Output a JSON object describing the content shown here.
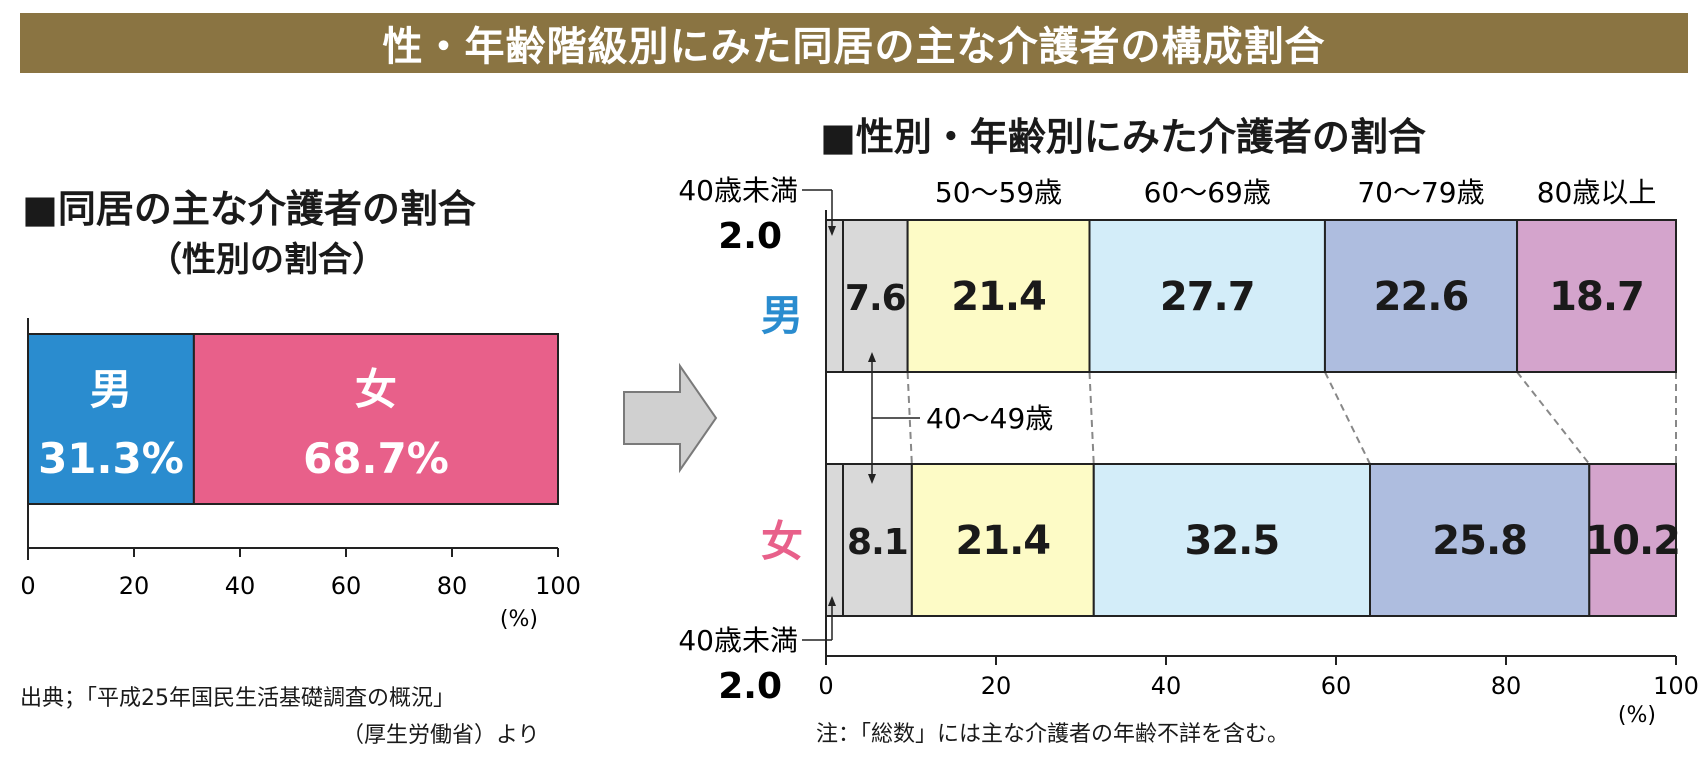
{
  "title": "性・年齢階級別にみた同居の主な介護者の構成割合",
  "left_heading": "■同居の主な介護者の割合",
  "left_subheading": "（性別の割合）",
  "right_heading": "■性別・年齢別にみた介護者の割合",
  "source_line1": "出典；「平成25年国民生活基礎調査の概況」",
  "source_line2": "（厚生労働省）より",
  "note": "注：「総数」には主な介護者の年齢不詳を含む。",
  "colors": {
    "title_bg": "#8a7442",
    "male": "#2a8ccf",
    "female": "#e8608a",
    "arrow": "#d0d0d0",
    "age_colors": [
      "#d9d9d9",
      "#d9d9d9",
      "#fdfbc6",
      "#d3edf9",
      "#aebddf",
      "#d4a4cc"
    ]
  },
  "chart_data": [
    {
      "type": "bar",
      "orientation": "horizontal",
      "stacked": true,
      "categories": [
        "男",
        "女"
      ],
      "values": [
        31.3,
        68.7
      ],
      "value_labels": [
        "31.3%",
        "68.7%"
      ],
      "xlim": [
        0,
        100
      ],
      "xticks": [
        "0",
        "20",
        "40",
        "60",
        "80",
        "100"
      ],
      "unit": "(%)"
    },
    {
      "type": "bar",
      "orientation": "horizontal",
      "stacked": true,
      "age_groups": [
        "40歳未満",
        "40～49歳",
        "50～59歳",
        "60～69歳",
        "70～79歳",
        "80歳以上"
      ],
      "series": [
        {
          "name": "男",
          "values": [
            2.0,
            7.6,
            21.4,
            27.7,
            22.6,
            18.7
          ]
        },
        {
          "name": "女",
          "values": [
            2.0,
            8.1,
            21.4,
            32.5,
            25.8,
            10.2
          ]
        }
      ],
      "segment_labels": [
        [
          "",
          "7.6",
          "21.4",
          "27.7",
          "22.6",
          "18.7"
        ],
        [
          "",
          "8.1",
          "21.4",
          "32.5",
          "25.8",
          "10.2"
        ]
      ],
      "small_callouts": [
        "2.0",
        "2.0"
      ],
      "xlim": [
        0,
        100
      ],
      "xticks": [
        "0",
        "20",
        "40",
        "60",
        "80",
        "100"
      ],
      "unit": "(%)"
    }
  ]
}
